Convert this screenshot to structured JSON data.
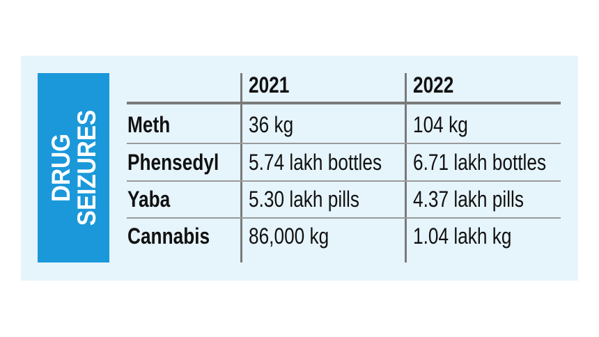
{
  "chart_data": {
    "type": "table",
    "title": "DRUG SEIZURES",
    "title_lines": [
      "DRUG",
      "SEIZURES"
    ],
    "columns": [
      "",
      "2021",
      "2022"
    ],
    "rows": [
      {
        "label": "Meth",
        "values": [
          "36 kg",
          "104 kg"
        ]
      },
      {
        "label": "Phensedyl",
        "values": [
          "5.74 lakh bottles",
          "6.71 lakh bottles"
        ]
      },
      {
        "label": "Yaba",
        "values": [
          "5.30 lakh pills",
          "4.37 lakh pills"
        ]
      },
      {
        "label": "Cannabis",
        "values": [
          "86,000 kg",
          "1.04 lakh kg"
        ]
      }
    ],
    "colors": {
      "background": "#e6f4fc",
      "title_box": "#1b98da",
      "lines": "#7a7a7a"
    }
  }
}
